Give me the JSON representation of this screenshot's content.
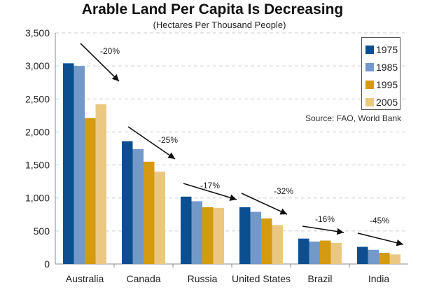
{
  "chart_data": {
    "type": "bar",
    "title": "Arable Land Per Capita Is Decreasing",
    "subtitle": "(Hectares Per Thousand People)",
    "source": "Source: FAO, World Bank",
    "categories": [
      "Australia",
      "Canada",
      "Russia",
      "United States",
      "Brazil",
      "India"
    ],
    "series": [
      {
        "name": "1975",
        "color": "#0b4f91",
        "values": [
          3040,
          1860,
          1020,
          860,
          385,
          260
        ]
      },
      {
        "name": "1985",
        "color": "#7299c8",
        "values": [
          3000,
          1740,
          950,
          790,
          340,
          215
        ]
      },
      {
        "name": "1995",
        "color": "#d49a10",
        "values": [
          2210,
          1550,
          860,
          690,
          355,
          170
        ]
      },
      {
        "name": "2005",
        "color": "#ebc882",
        "values": [
          2420,
          1400,
          850,
          590,
          320,
          145
        ]
      }
    ],
    "annotations": [
      "-20%",
      "-25%",
      "-17%",
      "-32%",
      "-16%",
      "-45%"
    ],
    "ylim": [
      0,
      3500
    ],
    "yticks": [
      0,
      500,
      1000,
      1500,
      2000,
      2500,
      3000,
      3500
    ],
    "ytick_labels": [
      "0",
      "500",
      "1,000",
      "1,500",
      "2,000",
      "2,500",
      "3,000",
      "3,500"
    ],
    "grid": "dashed horizontal",
    "legend": "top-right"
  }
}
